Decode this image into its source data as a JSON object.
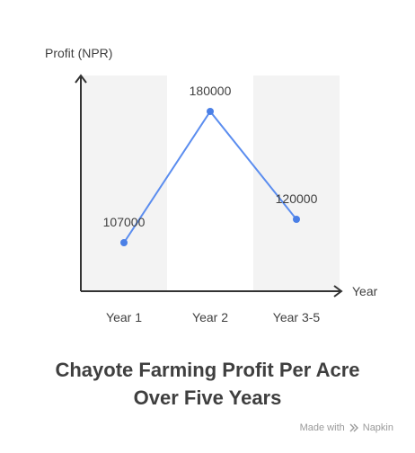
{
  "chart_data": {
    "type": "line",
    "title": "Chayote Farming Profit Per Acre Over Five Years",
    "title_lines": [
      "Chayote Farming Profit Per Acre",
      "Over Five Years"
    ],
    "xlabel": "Year",
    "ylabel": "Profit (NPR)",
    "categories": [
      "Year 1",
      "Year 2",
      "Year 3-5"
    ],
    "series": [
      {
        "values": [
          107000,
          180000,
          120000
        ]
      }
    ],
    "data_labels": [
      "107000",
      "180000",
      "120000"
    ],
    "ylim": [
      80000,
      200000
    ],
    "grid": false,
    "alternating_bands": true,
    "colors": {
      "line": "#5b8def",
      "point": "#4a7fe6",
      "band": "#f3f3f3",
      "axis": "#333333",
      "text": "#3f3f3f"
    }
  },
  "footer": {
    "credit_text": "Made with",
    "brand": "Napkin",
    "brand_icon": "napkin-logo-icon"
  }
}
